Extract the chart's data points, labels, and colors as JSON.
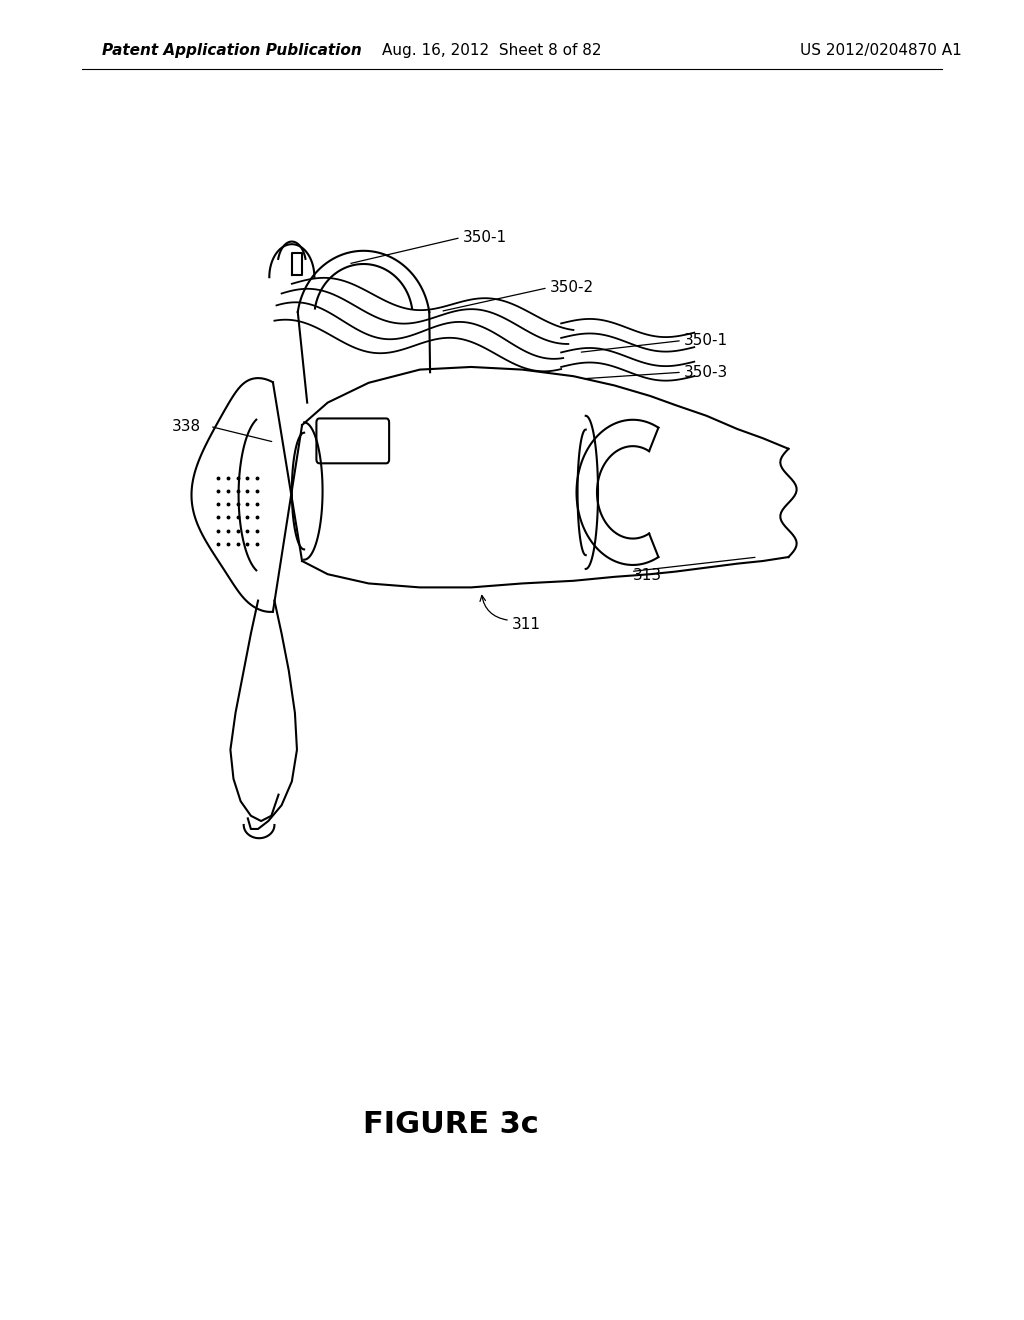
{
  "background_color": "#ffffff",
  "page_header_left": "Patent Application Publication",
  "page_header_center": "Aug. 16, 2012  Sheet 8 of 82",
  "page_header_right": "US 2012/0204870 A1",
  "figure_caption": "FIGURE 3c",
  "header_fontsize": 11,
  "caption_fontsize": 22,
  "label_fontsize": 11,
  "line_color": "#000000",
  "text_color": "#000000"
}
